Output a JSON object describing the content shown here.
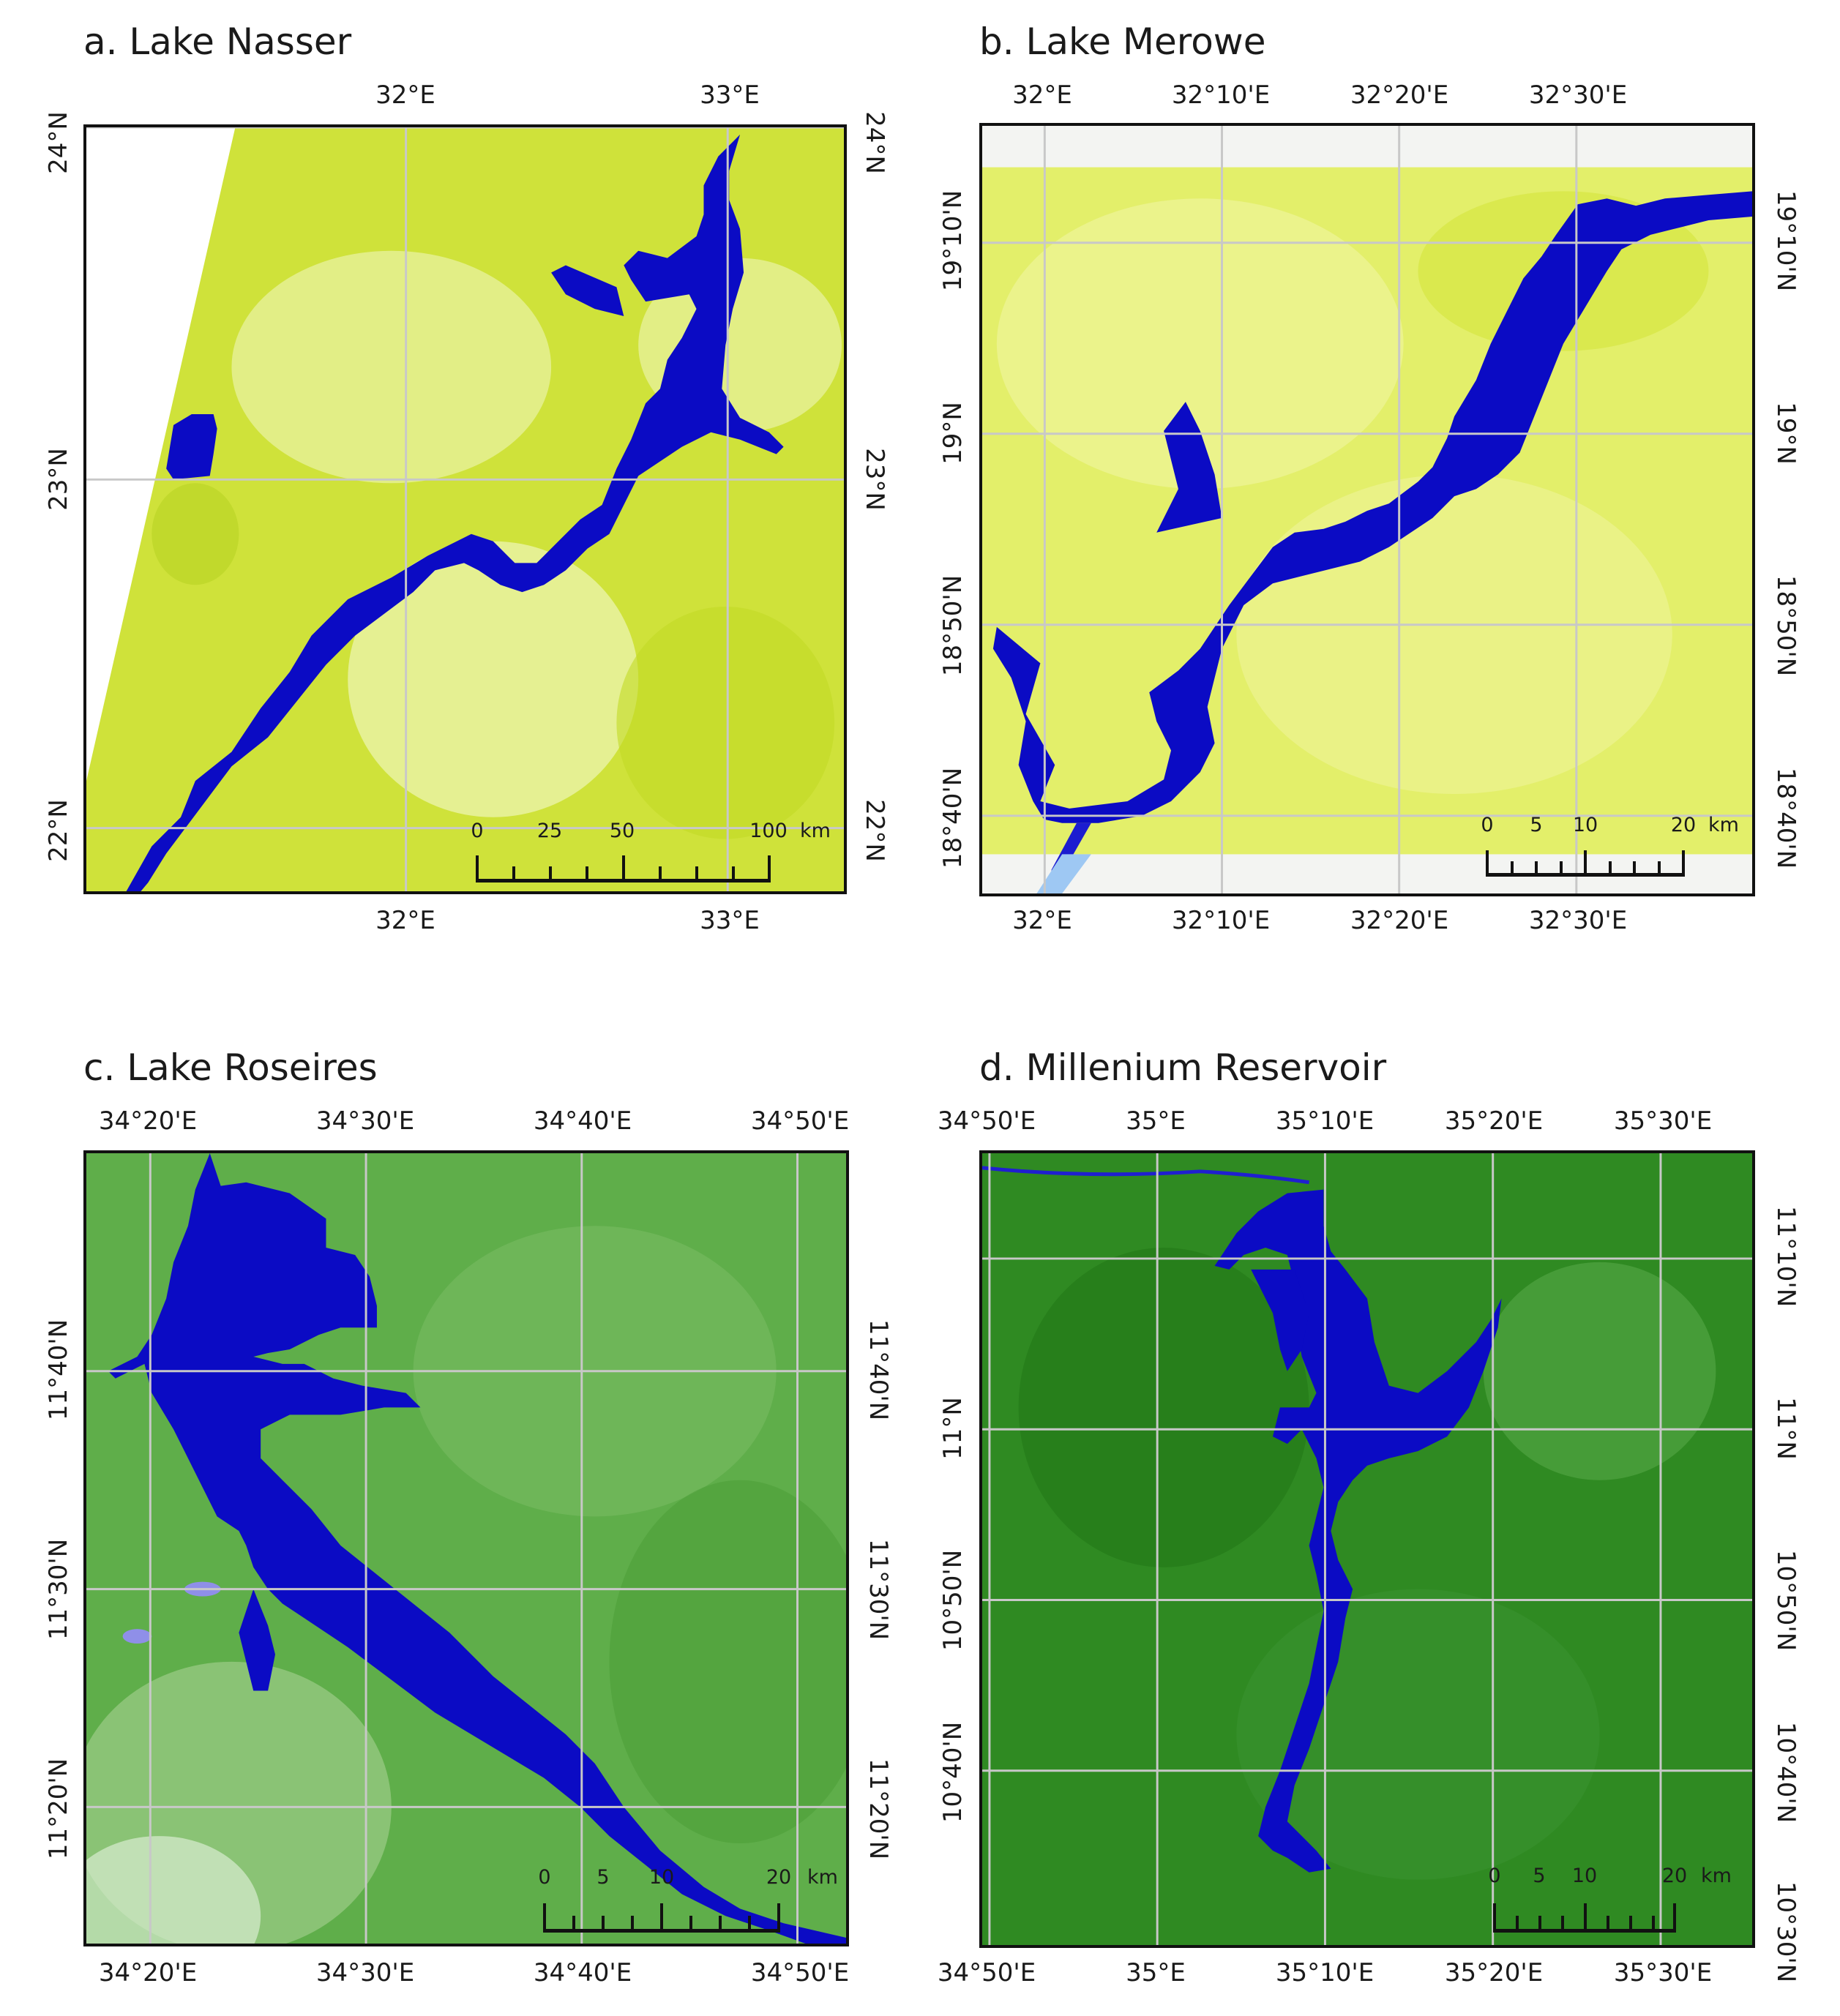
{
  "colors": {
    "water": "#0b0bc4",
    "desert_bg": "#cfe23a",
    "desert_light": "#eef6b8",
    "forest_bg": "#3f9a2f",
    "forest_dark": "#267d1c",
    "grid": "#c8c8c8",
    "nodata": "#f3f4f2"
  },
  "panels": [
    {
      "id": "a",
      "title": "a. Lake Nasser",
      "theme": "desert",
      "ticks": {
        "top": [
          "32°E",
          "33°E"
        ],
        "bottom": [
          "32°E",
          "33°E"
        ],
        "left": [
          "24°N",
          "23°N",
          "22°N"
        ],
        "right": [
          "24°N",
          "23°N",
          "22°N"
        ]
      },
      "scalebar": {
        "labels": [
          "0",
          "25",
          "50",
          "100"
        ],
        "unit": "km"
      }
    },
    {
      "id": "b",
      "title": "b. Lake Merowe",
      "theme": "desert",
      "ticks": {
        "top": [
          "32°E",
          "32°10'E",
          "32°20'E",
          "32°30'E"
        ],
        "bottom": [
          "32°E",
          "32°10'E",
          "32°20'E",
          "32°30'E"
        ],
        "left": [
          "19°10'N",
          "19°N",
          "18°50'N",
          "18°40'N"
        ],
        "right": [
          "19°10'N",
          "19°N",
          "18°50'N",
          "18°40'N"
        ]
      },
      "scalebar": {
        "labels": [
          "0",
          "5",
          "10",
          "20"
        ],
        "unit": "km"
      }
    },
    {
      "id": "c",
      "title": "c. Lake Roseires",
      "theme": "forest",
      "ticks": {
        "top": [
          "34°20'E",
          "34°30'E",
          "34°40'E",
          "34°50'E"
        ],
        "bottom": [
          "34°20'E",
          "34°30'E",
          "34°40'E",
          "34°50'E"
        ],
        "left": [
          "11°40'N",
          "11°30'N",
          "11°20'N"
        ],
        "right": [
          "11°40'N",
          "11°30'N",
          "11°20'N"
        ]
      },
      "scalebar": {
        "labels": [
          "0",
          "5",
          "10",
          "20"
        ],
        "unit": "km"
      }
    },
    {
      "id": "d",
      "title": "d. Millenium Reservoir",
      "theme": "forest",
      "ticks": {
        "top": [
          "34°50'E",
          "35°E",
          "35°10'E",
          "35°20'E",
          "35°30'E"
        ],
        "bottom": [
          "34°50'E",
          "35°E",
          "35°10'E",
          "35°20'E",
          "35°30'E"
        ],
        "left": [
          "11°N",
          "10°50'N",
          "10°40'N"
        ],
        "right": [
          "11°10'N",
          "11°N",
          "10°50'N",
          "10°40'N",
          "10°30'N"
        ]
      },
      "scalebar": {
        "labels": [
          "0",
          "5",
          "10",
          "20"
        ],
        "unit": "km"
      }
    }
  ]
}
